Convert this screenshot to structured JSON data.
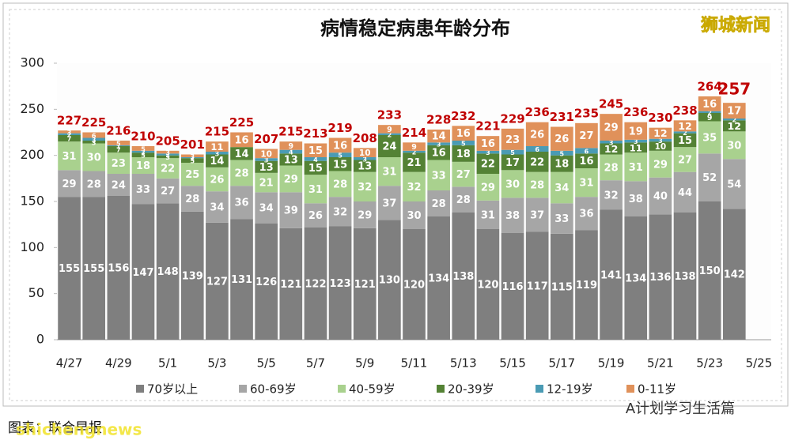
{
  "chart_data": {
    "type": "stacked-bar",
    "title": "病情稳定病患年龄分布",
    "source": "图表：联合早报",
    "brand": "狮城新闻",
    "watermark": "A计划学习生活篇",
    "watermark2": "shichengnews",
    "categories": [
      "4/27",
      null,
      "4/29",
      null,
      "5/1",
      null,
      "5/3",
      null,
      "5/5",
      null,
      "5/7",
      null,
      "5/9",
      null,
      "5/11",
      null,
      "5/13",
      null,
      "5/15",
      null,
      "5/17",
      null,
      "5/19",
      null,
      "5/21",
      null,
      "5/23",
      null,
      "5/25"
    ],
    "ylim": [
      0,
      300
    ],
    "yticks": [
      0,
      50,
      100,
      150,
      200,
      250,
      300
    ],
    "grid": false,
    "series": [
      {
        "name": "70岁以上",
        "color": "#7f7f7f",
        "values": [
          155,
          155,
          156,
          147,
          148,
          139,
          127,
          131,
          126,
          121,
          122,
          123,
          121,
          130,
          120,
          134,
          138,
          120,
          116,
          117,
          115,
          119,
          141,
          134,
          136,
          138,
          150,
          142,
          null
        ]
      },
      {
        "name": "60-69岁",
        "color": "#a6a6a6",
        "values": [
          29,
          28,
          24,
          33,
          27,
          28,
          34,
          36,
          34,
          39,
          26,
          32,
          29,
          37,
          30,
          28,
          28,
          31,
          38,
          37,
          33,
          36,
          32,
          38,
          40,
          44,
          52,
          54,
          null
        ]
      },
      {
        "name": "40-59岁",
        "color": "#a9d18e",
        "values": [
          31,
          30,
          23,
          18,
          22,
          25,
          26,
          28,
          21,
          29,
          31,
          28,
          32,
          31,
          32,
          33,
          27,
          29,
          30,
          28,
          34,
          31,
          28,
          31,
          29,
          27,
          35,
          30,
          null
        ]
      },
      {
        "name": "20-39岁",
        "color": "#548235",
        "values": [
          7,
          3,
          7,
          5,
          3,
          5,
          14,
          14,
          13,
          13,
          15,
          15,
          13,
          24,
          21,
          16,
          18,
          22,
          17,
          22,
          18,
          16,
          12,
          11,
          10,
          15,
          9,
          12,
          null
        ]
      },
      {
        "name": "12-19岁",
        "color": "#4a9bb4",
        "values": [
          2,
          3,
          1,
          2,
          2,
          1,
          3,
          0,
          3,
          4,
          4,
          5,
          3,
          2,
          2,
          3,
          5,
          3,
          5,
          6,
          5,
          6,
          3,
          3,
          3,
          2,
          2,
          2,
          null
        ]
      },
      {
        "name": "0-11岁",
        "color": "#e0915a",
        "values": [
          3,
          6,
          5,
          5,
          3,
          3,
          11,
          16,
          10,
          9,
          15,
          16,
          10,
          9,
          9,
          14,
          16,
          16,
          23,
          26,
          26,
          27,
          29,
          19,
          12,
          12,
          16,
          17,
          null
        ]
      }
    ],
    "totals": [
      227,
      225,
      216,
      210,
      205,
      201,
      215,
      225,
      207,
      215,
      213,
      219,
      208,
      233,
      214,
      228,
      232,
      221,
      229,
      236,
      231,
      235,
      245,
      236,
      230,
      238,
      264,
      257,
      null
    ]
  }
}
